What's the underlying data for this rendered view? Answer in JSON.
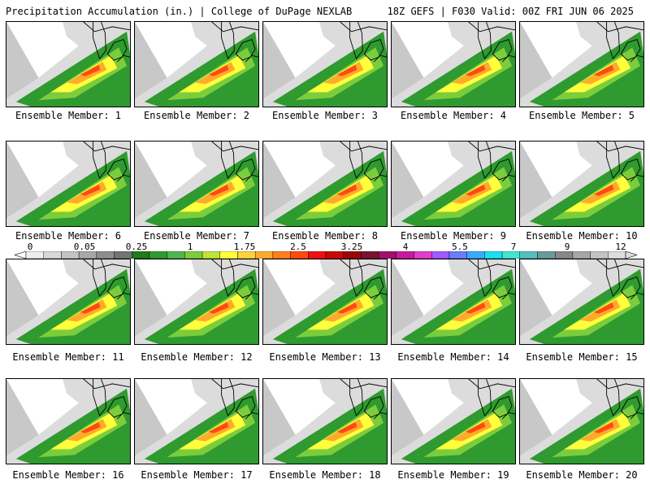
{
  "header": {
    "left_title": "Precipitation Accumulation (in.) | College of DuPage NEXLAB",
    "right_title": "18Z GEFS | F030 Valid: 00Z FRI JUN 06 2025"
  },
  "panels": [
    {
      "caption": "Ensemble Member: 1"
    },
    {
      "caption": "Ensemble Member: 2"
    },
    {
      "caption": "Ensemble Member: 3"
    },
    {
      "caption": "Ensemble Member: 4"
    },
    {
      "caption": "Ensemble Member: 5"
    },
    {
      "caption": "Ensemble Member: 6"
    },
    {
      "caption": "Ensemble Member: 7"
    },
    {
      "caption": "Ensemble Member: 8"
    },
    {
      "caption": "Ensemble Member: 9"
    },
    {
      "caption": "Ensemble Member: 10"
    },
    {
      "caption": "Ensemble Member: 11"
    },
    {
      "caption": "Ensemble Member: 12"
    },
    {
      "caption": "Ensemble Member: 13"
    },
    {
      "caption": "Ensemble Member: 14"
    },
    {
      "caption": "Ensemble Member: 15"
    },
    {
      "caption": "Ensemble Member: 16"
    },
    {
      "caption": "Ensemble Member: 17"
    },
    {
      "caption": "Ensemble Member: 18"
    },
    {
      "caption": "Ensemble Member: 19"
    },
    {
      "caption": "Ensemble Member: 20"
    }
  ],
  "colorbar": {
    "labels": [
      "0",
      "0.05",
      "0.25",
      "1",
      "1.75",
      "2.5",
      "3.25",
      "4",
      "5.5",
      "7",
      "9",
      "12"
    ],
    "colors": [
      "#eeeeee",
      "#d8d8d8",
      "#c4c4c4",
      "#a8a8a8",
      "#8e8e8e",
      "#747474",
      "#1e7b1e",
      "#2f9a2f",
      "#4fb64f",
      "#7ccd3c",
      "#bfe33a",
      "#ffff3c",
      "#ffd23c",
      "#ffaa2c",
      "#ff7e1c",
      "#ff4a10",
      "#f01010",
      "#c80a0a",
      "#9a0606",
      "#7a1230",
      "#a0106a",
      "#c81aa0",
      "#e43ccc",
      "#a05aff",
      "#6a7cff",
      "#3aaaff",
      "#1ae0f0",
      "#40e6d0",
      "#52c0c0",
      "#6a9a9a",
      "#888888",
      "#a6a6a6",
      "#c4c4c4",
      "#dddddd"
    ]
  }
}
